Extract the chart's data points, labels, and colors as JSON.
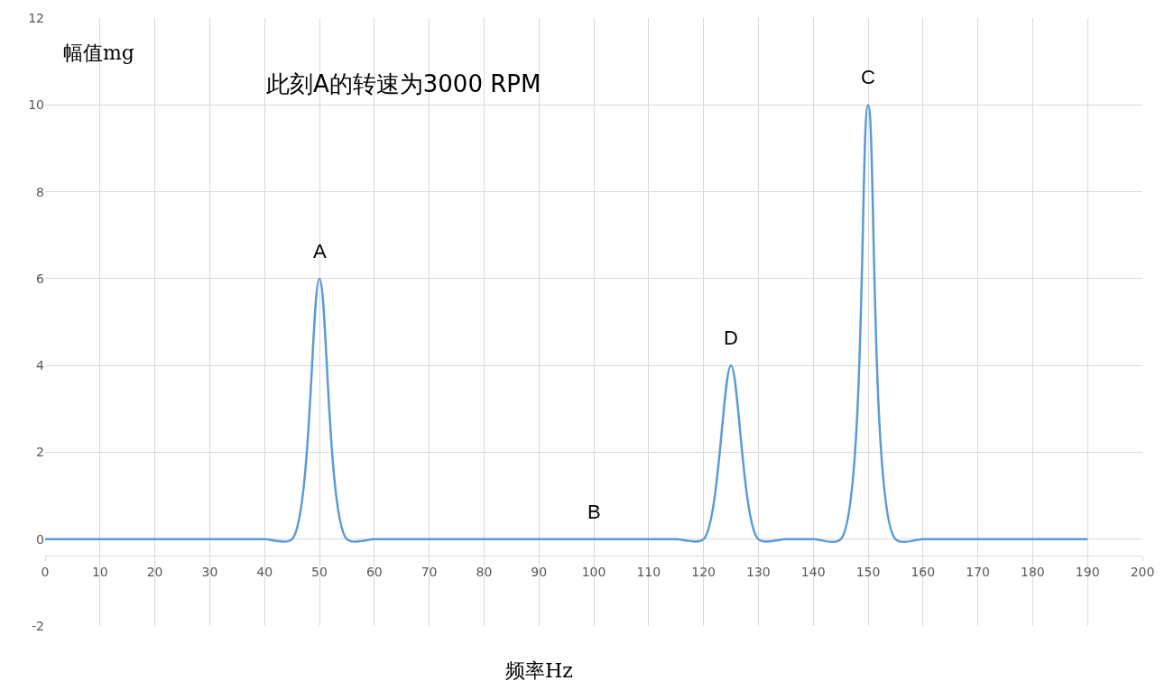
{
  "chart_data": {
    "type": "line",
    "xlabel": "频率Hz",
    "ylabel": "幅值mg",
    "x": [
      0,
      5,
      10,
      15,
      20,
      25,
      30,
      35,
      40,
      45,
      50,
      55,
      60,
      65,
      70,
      75,
      80,
      85,
      90,
      95,
      100,
      105,
      110,
      115,
      120,
      125,
      130,
      135,
      140,
      145,
      150,
      155,
      160,
      165,
      170,
      175,
      180,
      185,
      190
    ],
    "series": [
      {
        "color": "#5b9bd5",
        "values": [
          0,
          0,
          0,
          0,
          0,
          0,
          0,
          0,
          0,
          0,
          6,
          0,
          0,
          0,
          0,
          0,
          0,
          0,
          0,
          0,
          0,
          0,
          0,
          0,
          0,
          4,
          0,
          0,
          0,
          0,
          10,
          0,
          0,
          0,
          0,
          0,
          0,
          0,
          0
        ]
      }
    ],
    "xlim": [
      0,
      200
    ],
    "xticks": [
      0,
      10,
      20,
      30,
      40,
      50,
      60,
      70,
      80,
      90,
      100,
      110,
      120,
      130,
      140,
      150,
      160,
      170,
      180,
      190,
      200
    ],
    "ylim": [
      -2,
      12
    ],
    "yticks": [
      -2,
      0,
      2,
      4,
      6,
      8,
      10,
      12
    ],
    "grid": true,
    "marker": "none",
    "line_style": "solid",
    "annotations": [
      {
        "text": "此刻A的转速为3000 RPM"
      },
      {
        "text": "A",
        "x": 50,
        "y": 6
      },
      {
        "text": "B",
        "x": 100,
        "y": 0
      },
      {
        "text": "D",
        "x": 125,
        "y": 4
      },
      {
        "text": "C",
        "x": 150,
        "y": 10
      }
    ]
  }
}
